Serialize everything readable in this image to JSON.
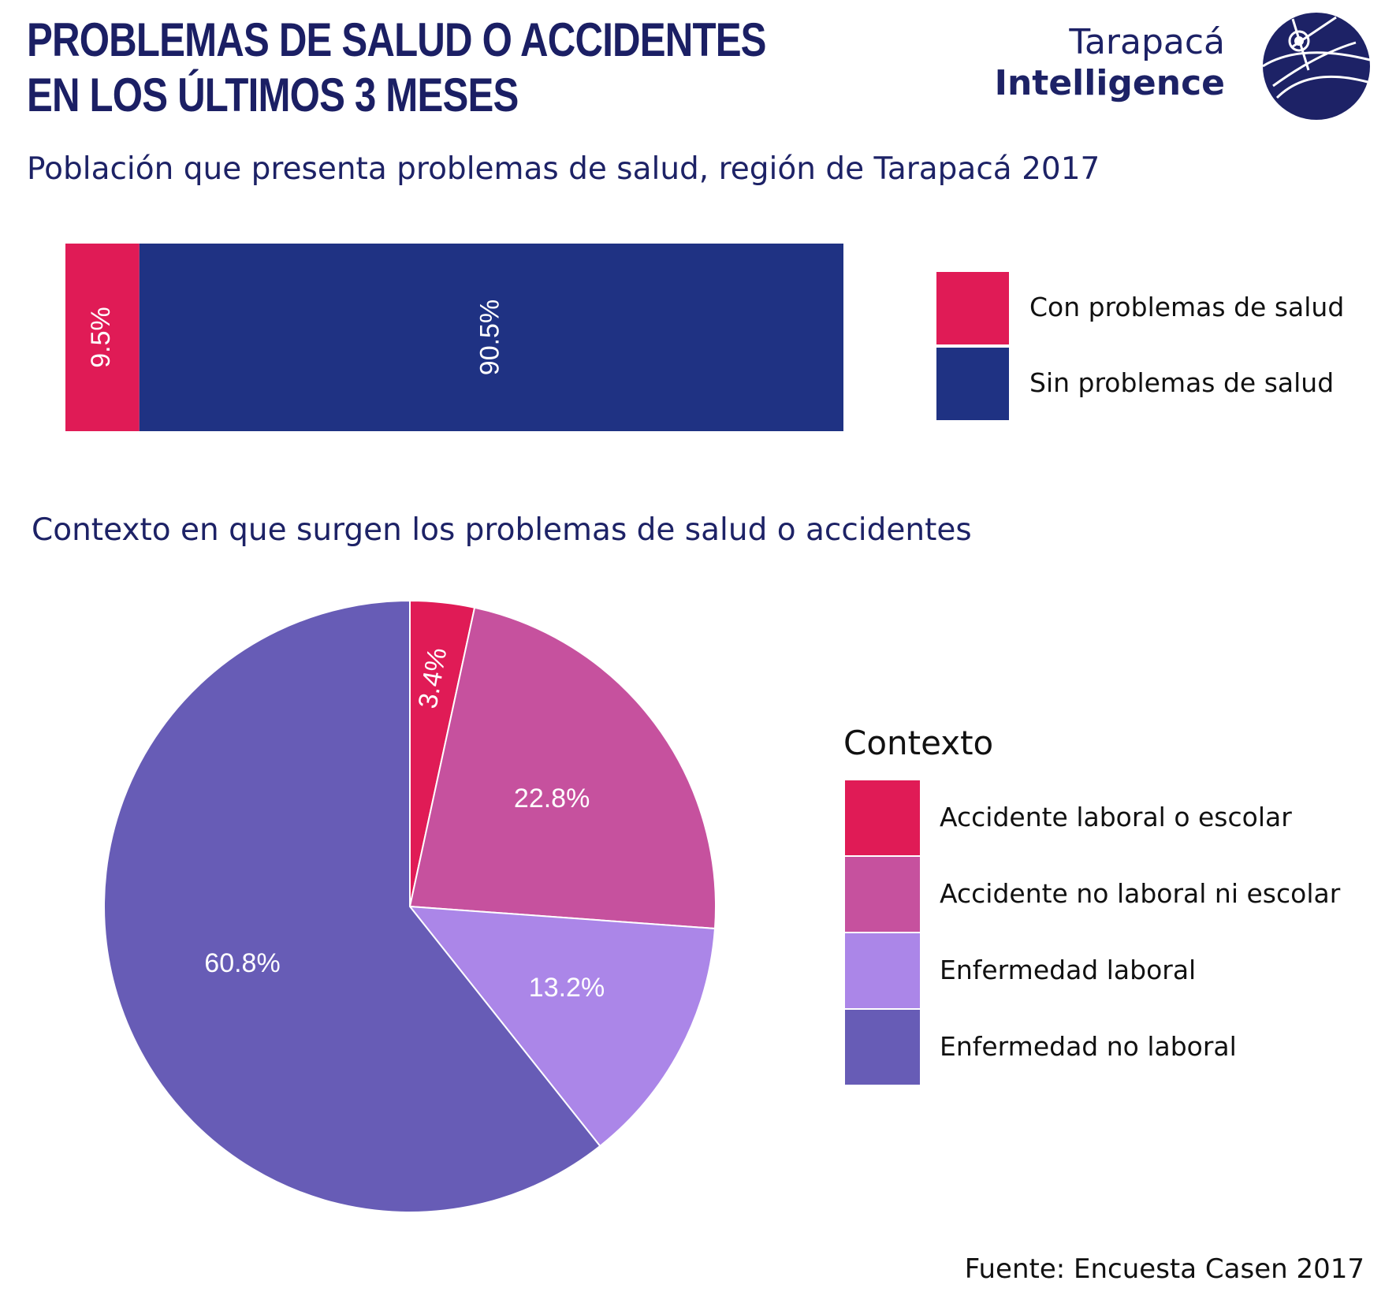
{
  "header": {
    "title_line1": "PROBLEMAS DE SALUD O ACCIDENTES",
    "title_line2": "EN LOS ÚLTIMOS 3 MESES"
  },
  "logo": {
    "line1": "Tarapacá",
    "line2": "Intelligence",
    "icon": "globe-satellite-icon",
    "color": "#1d2266"
  },
  "footer": {
    "source": "Fuente: Encuesta Casen 2017"
  },
  "chart_data": [
    {
      "type": "bar",
      "orientation": "horizontal-stacked",
      "title": "Población que presenta problemas de salud, región de Tarapacá 2017",
      "series": [
        {
          "name": "Con problemas de salud",
          "value": 9.5,
          "label": "9.5%",
          "color": "#e01b56"
        },
        {
          "name": "Sin problemas de salud",
          "value": 90.5,
          "label": "90.5%",
          "color": "#1f3283"
        }
      ],
      "xlim": [
        0,
        100
      ],
      "grid": false,
      "legend": "right"
    },
    {
      "type": "pie",
      "title": "Contexto en que surgen los problemas de salud o accidentes",
      "legend_title": "Contexto",
      "legend": "right",
      "slices": [
        {
          "name": "Accidente laboral o escolar",
          "value": 3.4,
          "label": "3.4%",
          "color": "#e01b56"
        },
        {
          "name": "Accidente no laboral ni escolar",
          "value": 22.8,
          "label": "22.8%",
          "color": "#c6519e"
        },
        {
          "name": "Enfermedad laboral",
          "value": 13.2,
          "label": "13.2%",
          "color": "#ab86e8"
        },
        {
          "name": "Enfermedad no laboral",
          "value": 60.8,
          "label": "60.8%",
          "color": "#675cb6"
        }
      ]
    }
  ]
}
